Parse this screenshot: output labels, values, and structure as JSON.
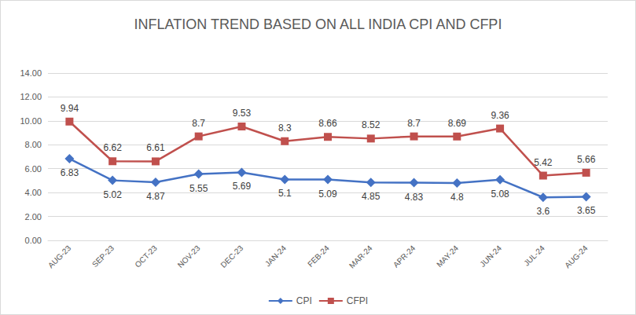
{
  "chart_data": {
    "type": "line",
    "title": "INFLATION TREND BASED ON ALL INDIA CPI AND CFPI",
    "categories": [
      "AUG-23",
      "SEP-23",
      "OCT-23",
      "NOV-23",
      "DEC-23",
      "JAN-24",
      "FEB-24",
      "MAR-24",
      "APR-24",
      "MAY-24",
      "JUN-24",
      "JUL-24",
      "AUG-24"
    ],
    "series": [
      {
        "name": "CPI",
        "color": "#4472c4",
        "marker": "diamond",
        "values": [
          6.83,
          5.02,
          4.87,
          5.55,
          5.69,
          5.1,
          5.09,
          4.85,
          4.83,
          4.8,
          5.08,
          3.6,
          3.65
        ]
      },
      {
        "name": "CFPI",
        "color": "#c0504d",
        "marker": "square",
        "values": [
          9.94,
          6.62,
          6.61,
          8.7,
          9.53,
          8.3,
          8.66,
          8.52,
          8.7,
          8.69,
          9.36,
          5.42,
          5.66
        ]
      }
    ],
    "ylim": [
      0,
      14
    ],
    "yticks": [
      {
        "value": 0,
        "label": "0.00"
      },
      {
        "value": 2,
        "label": "2.00"
      },
      {
        "value": 4,
        "label": "4.00"
      },
      {
        "value": 6,
        "label": "6.00"
      },
      {
        "value": 8,
        "label": "8.00"
      },
      {
        "value": 10,
        "label": "10.00"
      },
      {
        "value": 12,
        "label": "12.00"
      },
      {
        "value": 14,
        "label": "14.00"
      }
    ],
    "grid": true,
    "legend": "bottom",
    "data_labels": true
  }
}
